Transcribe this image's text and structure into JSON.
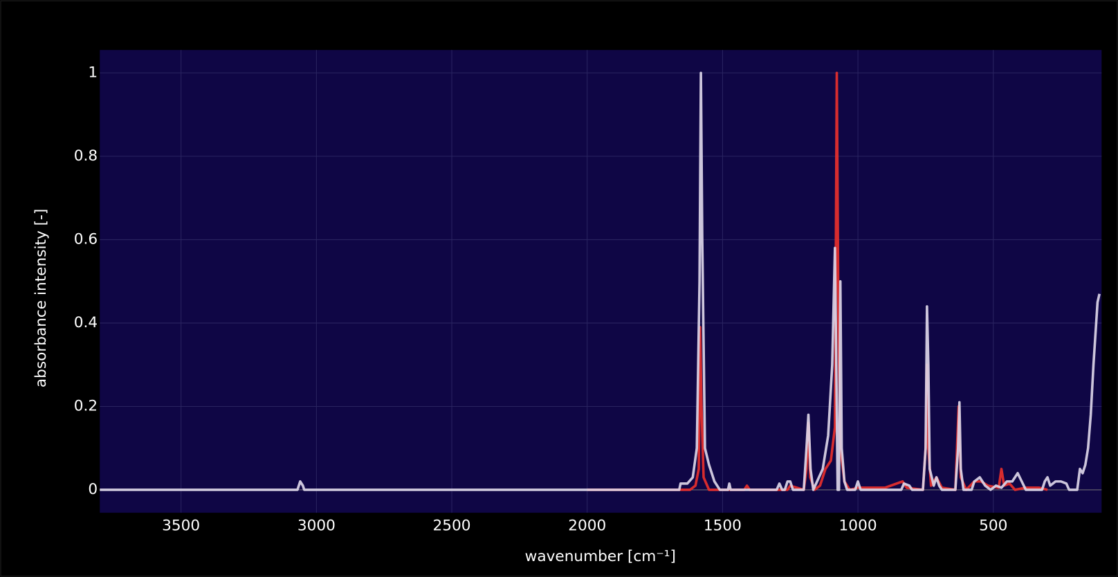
{
  "chart_data": {
    "type": "line",
    "xlabel": "wavenumber [cm⁻¹]",
    "ylabel": "absorbance intensity [-]",
    "xlim": [
      3800,
      100
    ],
    "ylim": [
      -0.055,
      1.055
    ],
    "xticks": [
      3500,
      3000,
      2500,
      2000,
      1500,
      1000,
      500
    ],
    "yticks": [
      0,
      0.2,
      0.4,
      0.6,
      0.8,
      1
    ],
    "grid": true,
    "series": [
      {
        "color": "#e8302c",
        "x": [
          2000,
          1620,
          1600,
          1588,
          1583,
          1578,
          1570,
          1550,
          1420,
          1410,
          1400,
          1260,
          1250,
          1200,
          1190,
          1183,
          1176,
          1160,
          1140,
          1120,
          1100,
          1085,
          1078,
          1072,
          1065,
          1050,
          1030,
          1000,
          900,
          835,
          820,
          760,
          750,
          745,
          740,
          730,
          710,
          690,
          640,
          628,
          620,
          600,
          570,
          545,
          520,
          480,
          470,
          460,
          440,
          420,
          380,
          330,
          300
        ],
        "values": [
          0,
          0,
          0.01,
          0.05,
          0.39,
          0.2,
          0.03,
          0,
          0,
          0.01,
          0,
          0,
          0.01,
          0,
          0.05,
          0.16,
          0.03,
          0,
          0.01,
          0.05,
          0.07,
          0.15,
          1.0,
          0.4,
          0.1,
          0.02,
          0,
          0.005,
          0.005,
          0.02,
          0.005,
          0,
          0.1,
          0.3,
          0.1,
          0.01,
          0.03,
          0.005,
          0,
          0.2,
          0.03,
          0,
          0.02,
          0.02,
          0.01,
          0.005,
          0.05,
          0.01,
          0.015,
          0,
          0.005,
          0.005,
          0
        ]
      },
      {
        "color": "#dcd6e8",
        "x": [
          3800,
          3070,
          3060,
          3050,
          3045,
          1660,
          1655,
          1630,
          1610,
          1595,
          1585,
          1580,
          1575,
          1565,
          1550,
          1530,
          1510,
          1480,
          1475,
          1470,
          1300,
          1290,
          1280,
          1270,
          1260,
          1250,
          1240,
          1200,
          1190,
          1183,
          1175,
          1165,
          1130,
          1110,
          1095,
          1085,
          1080,
          1075,
          1070,
          1065,
          1060,
          1050,
          1040,
          1010,
          1000,
          990,
          840,
          830,
          810,
          800,
          760,
          750,
          745,
          740,
          735,
          720,
          710,
          700,
          690,
          640,
          630,
          625,
          620,
          610,
          580,
          570,
          550,
          530,
          510,
          490,
          470,
          450,
          430,
          410,
          395,
          380,
          320,
          310,
          300,
          290,
          270,
          250,
          230,
          220,
          190,
          180,
          170,
          160,
          150,
          140,
          130,
          115,
          108
        ],
        "values": [
          0,
          0,
          0.02,
          0.01,
          0,
          0,
          0.015,
          0.015,
          0.03,
          0.1,
          0.5,
          1.0,
          0.6,
          0.1,
          0.06,
          0.02,
          0,
          0,
          0.015,
          0,
          0,
          0.015,
          0,
          0,
          0.02,
          0.02,
          0,
          0,
          0.1,
          0.18,
          0.05,
          0,
          0.05,
          0.13,
          0.3,
          0.58,
          0.3,
          0,
          0,
          0.5,
          0.1,
          0.02,
          0,
          0,
          0.02,
          0,
          0,
          0.015,
          0.01,
          0,
          0,
          0.1,
          0.44,
          0.3,
          0.05,
          0.01,
          0.03,
          0.01,
          0,
          0,
          0.1,
          0.21,
          0.05,
          0,
          0,
          0.02,
          0.03,
          0.01,
          0,
          0.01,
          0.005,
          0.02,
          0.02,
          0.04,
          0.02,
          0,
          0,
          0.02,
          0.03,
          0.01,
          0.02,
          0.02,
          0.015,
          0,
          0,
          0.05,
          0.04,
          0.06,
          0.1,
          0.18,
          0.3,
          0.45,
          0.47
        ]
      }
    ]
  }
}
